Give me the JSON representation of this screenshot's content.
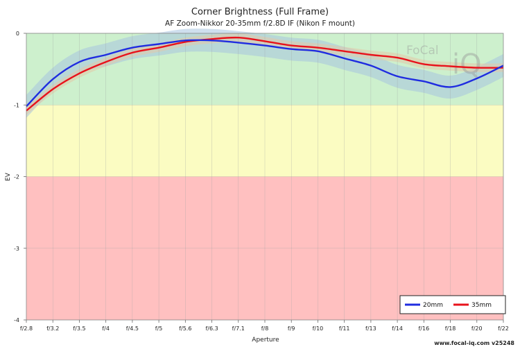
{
  "colors": {
    "zone_good": "#cdf0cd",
    "zone_ok": "#fbfcc2",
    "zone_bad": "#ffc0c0",
    "series_20": "#1f2ce0",
    "series_35": "#e8121b",
    "band_20": "#a8c4e0",
    "band_35": "#e4c8a8"
  },
  "watermark": {
    "text_a": "FoCal",
    "text_b": "iQ"
  },
  "footer": "www.focal-iq.com  v25248",
  "chart_data": {
    "type": "line",
    "title": "Corner Brightness (Full Frame)",
    "subtitle": "AF Zoom-Nikkor 20-35mm f/2.8D IF (Nikon F mount)",
    "xlabel": "Aperture",
    "ylabel": "EV",
    "categories": [
      "f/2.8",
      "f/3.2",
      "f/3.5",
      "f/4",
      "f/4.5",
      "f/5",
      "f/5.6",
      "f/6.3",
      "f/7.1",
      "f/8",
      "f/9",
      "f/10",
      "f/11",
      "f/13",
      "f/14",
      "f/16",
      "f/18",
      "f/20",
      "f/22"
    ],
    "yticks": [
      "0",
      "-1",
      "-2",
      "-3",
      "-4"
    ],
    "ylim": [
      -4,
      0
    ],
    "zones": [
      {
        "from": 0,
        "to": -1,
        "label": "good"
      },
      {
        "from": -1,
        "to": -2,
        "label": "ok"
      },
      {
        "from": -2,
        "to": -4,
        "label": "bad"
      }
    ],
    "grid": true,
    "legend": "bottom-right",
    "series": [
      {
        "name": "20mm",
        "values": [
          -1.02,
          -0.64,
          -0.4,
          -0.3,
          -0.2,
          -0.15,
          -0.1,
          -0.1,
          -0.13,
          -0.17,
          -0.22,
          -0.25,
          -0.35,
          -0.45,
          -0.6,
          -0.67,
          -0.75,
          -0.63,
          -0.45
        ],
        "band": 0.16
      },
      {
        "name": "35mm",
        "values": [
          -1.08,
          -0.78,
          -0.56,
          -0.4,
          -0.27,
          -0.2,
          -0.12,
          -0.08,
          -0.06,
          -0.11,
          -0.17,
          -0.2,
          -0.25,
          -0.3,
          -0.34,
          -0.43,
          -0.46,
          -0.48,
          -0.48
        ],
        "band": 0.06
      }
    ]
  }
}
